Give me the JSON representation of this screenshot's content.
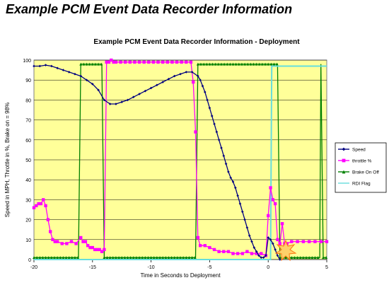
{
  "header": {
    "title": "Example PCM Event Data Recorder Information"
  },
  "chart_data": {
    "type": "line",
    "title": "Example PCM Event Data Recorder Information - Deployment",
    "xlabel": "Time in Seconds to Deployment",
    "ylabel": "Speed in MPH, Throttle in %, Brake on = 98%",
    "xlim": [
      -20,
      5
    ],
    "ylim": [
      0,
      100
    ],
    "x_ticks": [
      -20,
      -15,
      -10,
      -5,
      0,
      5
    ],
    "y_ticks": [
      0,
      10,
      20,
      30,
      40,
      50,
      60,
      70,
      80,
      90,
      100
    ],
    "grid": true,
    "plot_background": "#ffff99",
    "legend_position": "right",
    "series": [
      {
        "name": "Speed",
        "color": "#000080",
        "marker": "diamond",
        "x": [
          -20,
          -19.5,
          -19,
          -18.5,
          -18,
          -17.5,
          -17,
          -16.5,
          -16,
          -15.5,
          -15,
          -14.5,
          -14,
          -13.5,
          -13,
          -12.5,
          -12,
          -11.5,
          -11,
          -10.5,
          -10,
          -9.5,
          -9,
          -8.5,
          -8,
          -7.5,
          -7,
          -6.5,
          -6,
          -5.8,
          -5.6,
          -5.4,
          -5.2,
          -5,
          -4.8,
          -4.6,
          -4.4,
          -4.2,
          -4,
          -3.8,
          -3.6,
          -3.4,
          -3.2,
          -3,
          -2.8,
          -2.6,
          -2.4,
          -2.2,
          -2,
          -1.8,
          -1.6,
          -1.4,
          -1.2,
          -1,
          -0.8,
          -0.6,
          -0.4,
          -0.2,
          0,
          0.2,
          0.4,
          0.6,
          0.8,
          1.0
        ],
        "values": [
          97,
          97,
          97.5,
          97,
          96,
          95,
          94,
          93,
          92,
          90,
          88,
          85,
          80,
          78,
          78,
          79,
          80,
          81.5,
          83,
          84.5,
          86,
          87.5,
          89,
          90.5,
          92,
          93,
          94,
          94,
          92,
          90,
          87,
          84,
          80,
          76,
          72,
          68,
          64,
          60,
          56,
          52,
          48,
          44,
          41,
          39,
          36,
          32,
          28,
          24,
          20,
          16,
          12,
          9,
          6,
          4,
          2,
          1,
          1,
          2,
          11,
          10,
          8,
          5,
          2,
          0
        ]
      },
      {
        "name": "throttle %",
        "color": "#ff00ff",
        "marker": "square",
        "x": [
          -20,
          -19.8,
          -19.6,
          -19.4,
          -19.2,
          -19.0,
          -18.8,
          -18.6,
          -18.4,
          -18.2,
          -18.0,
          -17.6,
          -17.2,
          -16.8,
          -16.4,
          -16.0,
          -15.8,
          -15.6,
          -15.4,
          -15.2,
          -15.0,
          -14.8,
          -14.6,
          -14.4,
          -14.2,
          -14.0,
          -13.8,
          -13.6,
          -13.4,
          -13.2,
          -13.0,
          -12.6,
          -12.2,
          -11.8,
          -11.4,
          -11.0,
          -10.6,
          -10.2,
          -9.8,
          -9.4,
          -9.0,
          -8.6,
          -8.2,
          -7.8,
          -7.4,
          -7.0,
          -6.6,
          -6.4,
          -6.2,
          -6.0,
          -5.8,
          -5.4,
          -5.0,
          -4.6,
          -4.2,
          -3.8,
          -3.4,
          -3.0,
          -2.6,
          -2.2,
          -1.8,
          -1.4,
          -1.0,
          -0.6,
          -0.2,
          0,
          0.2,
          0.4,
          0.6,
          0.8,
          1.0,
          1.2,
          1.4,
          1.6,
          2.0,
          2.5,
          3.0,
          3.5,
          4.0,
          4.5,
          5.0
        ],
        "values": [
          26,
          27,
          28,
          28,
          30,
          27,
          20,
          14,
          10,
          9,
          9,
          8,
          8,
          9,
          8,
          11,
          9,
          9,
          7,
          6,
          6,
          5,
          5,
          5,
          4,
          5,
          99,
          99,
          100,
          99,
          99,
          99,
          99,
          99,
          99,
          99,
          99,
          99,
          99,
          99,
          99,
          99,
          99,
          99,
          99,
          99,
          99,
          89,
          64,
          11,
          7,
          7,
          6,
          5,
          4,
          4,
          4,
          3,
          3,
          3,
          4,
          3,
          3,
          3,
          2,
          22,
          36,
          30,
          28,
          10,
          8,
          18,
          8,
          8,
          9,
          9,
          9,
          9,
          9,
          9,
          9
        ]
      },
      {
        "name": "Brake On Off",
        "color": "#008000",
        "marker": "triangle",
        "x": [
          -20,
          -16.2,
          -16.0,
          -14.2,
          -14.0,
          -6.2,
          -6.0,
          0.8,
          1.0,
          4.4,
          4.5,
          4.7,
          5.0
        ],
        "values": [
          1,
          1,
          98,
          98,
          1,
          1,
          98,
          98,
          1,
          1,
          98,
          1,
          1
        ]
      },
      {
        "name": "RDI Flag",
        "color": "#66dddd",
        "marker": "none",
        "x": [
          -20,
          0.2,
          0.3,
          5.0
        ],
        "values": [
          0,
          0,
          97,
          97
        ]
      }
    ]
  }
}
